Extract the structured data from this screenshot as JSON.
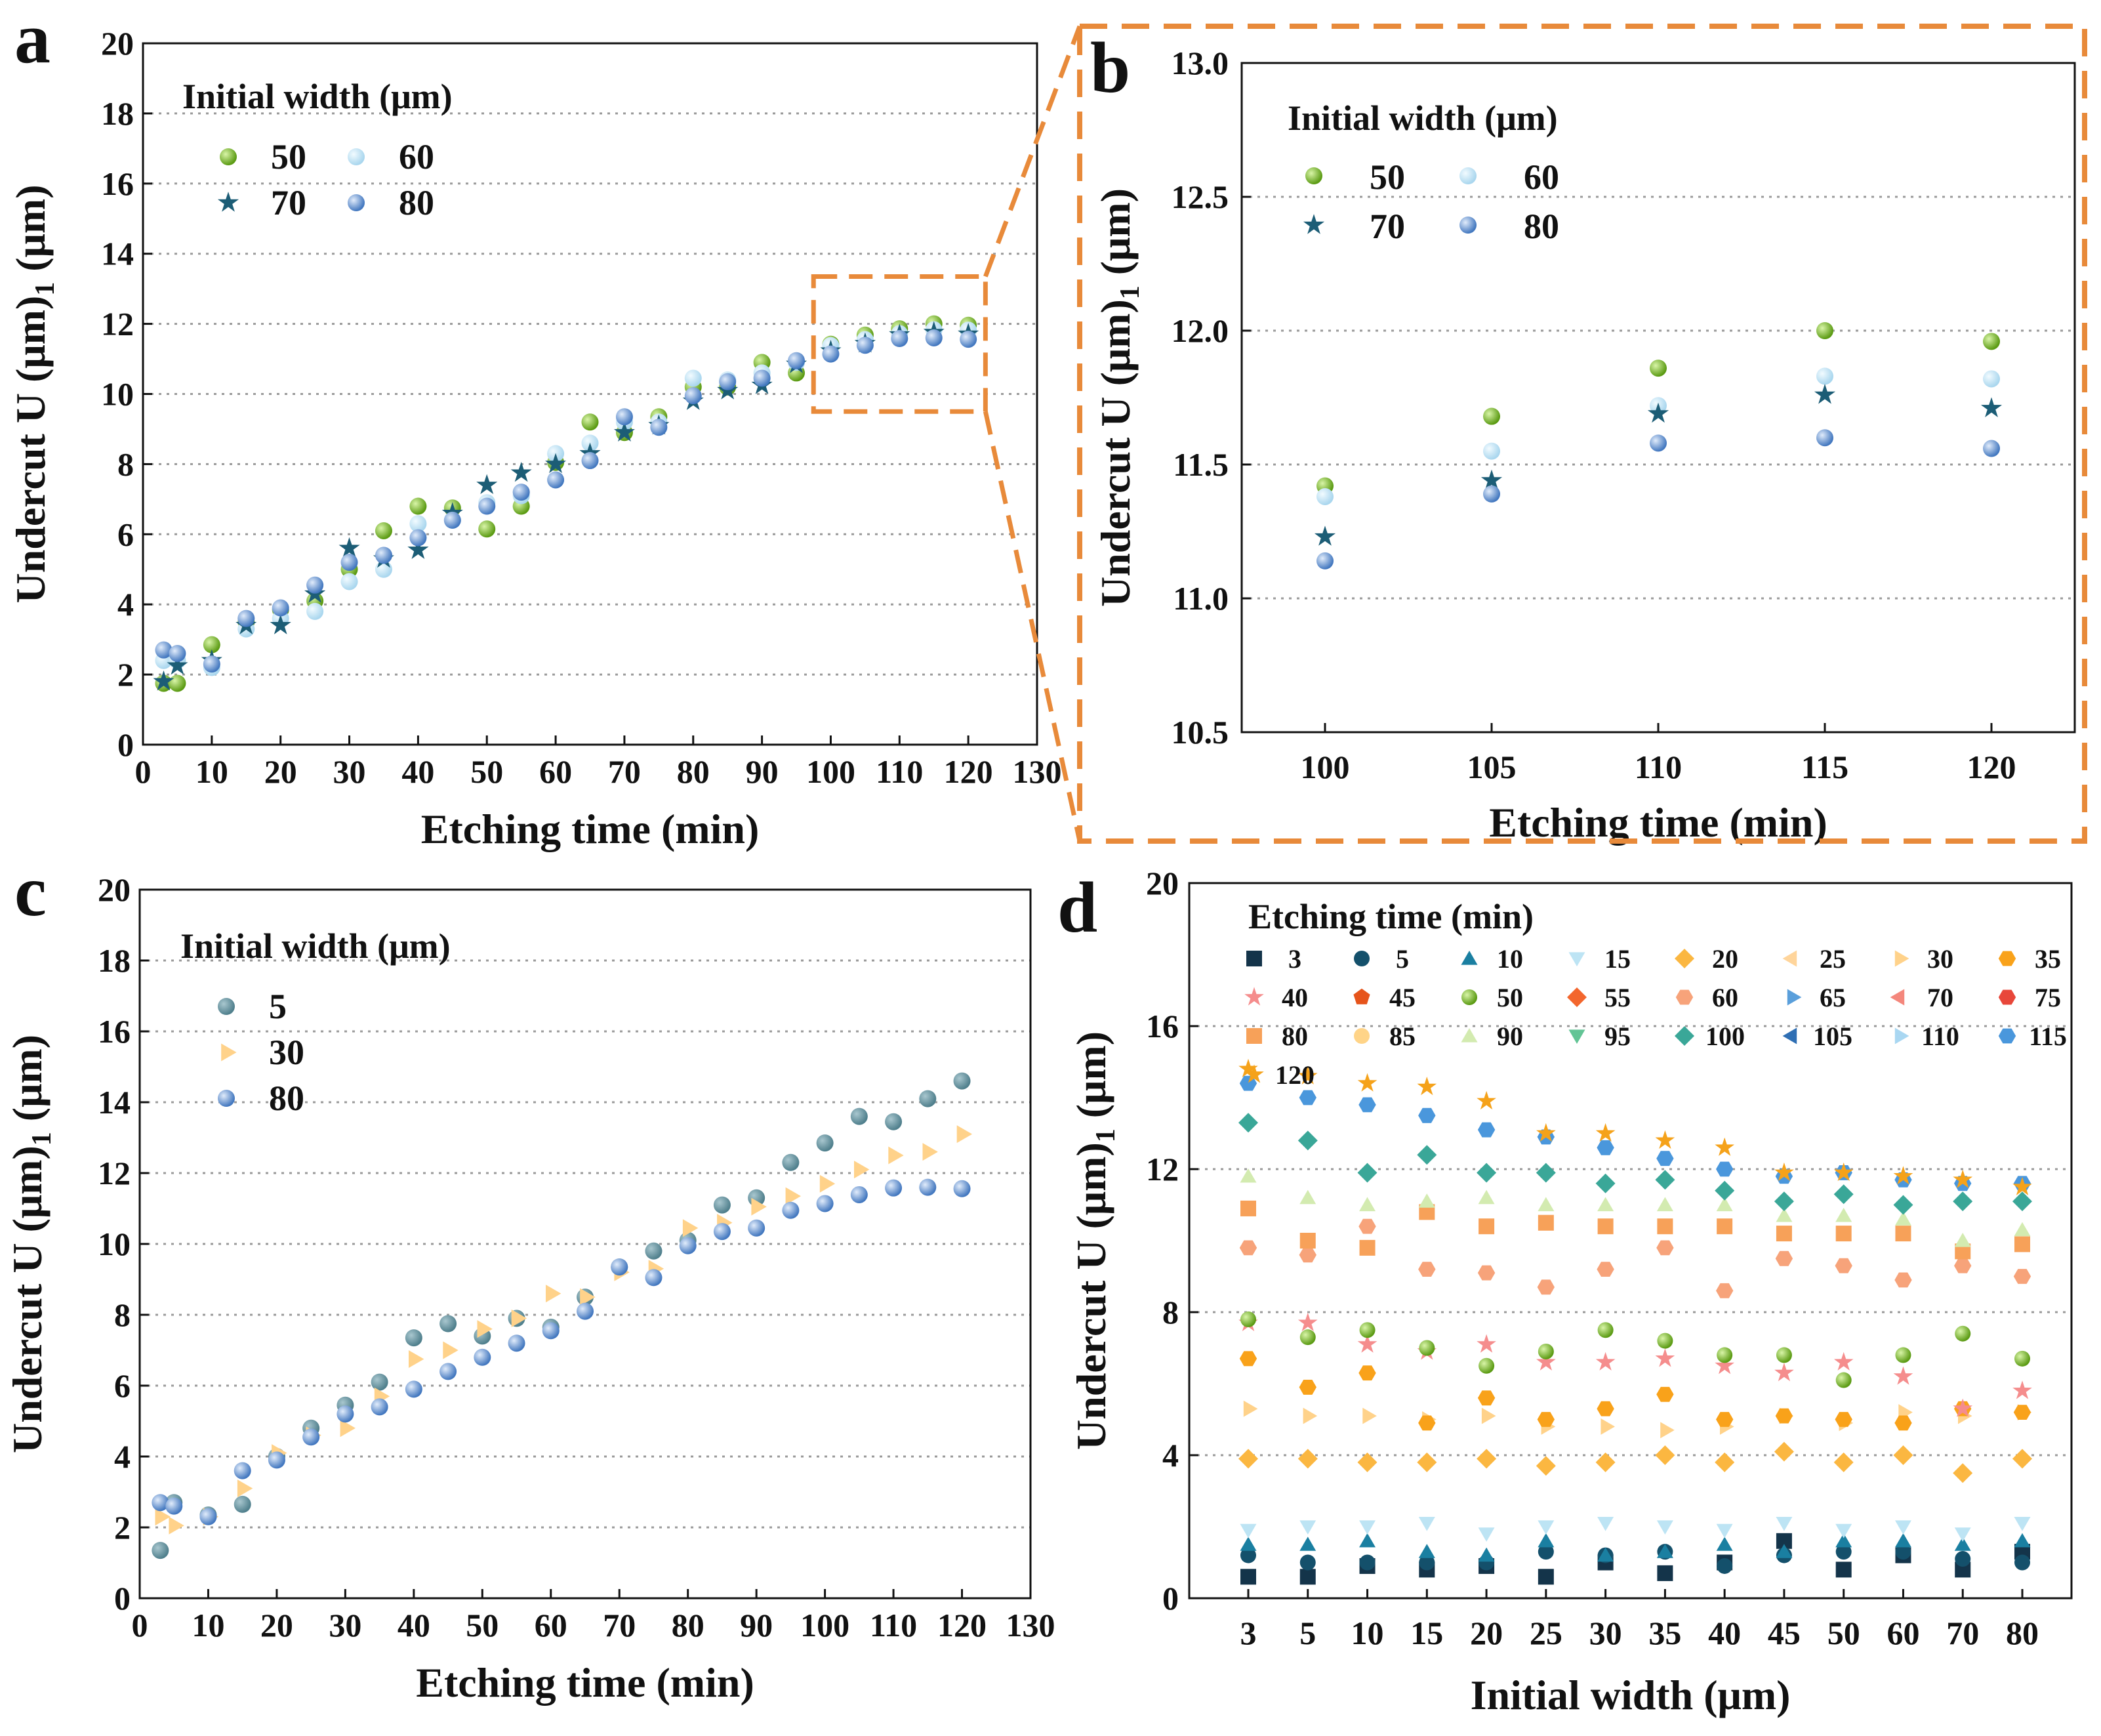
{
  "panels": {
    "a": {
      "label": "a"
    },
    "b": {
      "label": "b"
    },
    "c": {
      "label": "c"
    },
    "d": {
      "label": "d"
    }
  },
  "chart_data": [
    {
      "id": "a",
      "type": "scatter",
      "title": "",
      "xlabel": "Etching time (min)",
      "ylabel": "Undercut U1 (μm)",
      "xlim": [
        0,
        130
      ],
      "ylim": [
        0,
        20
      ],
      "xticks": [
        "0",
        "10",
        "20",
        "30",
        "40",
        "50",
        "60",
        "70",
        "80",
        "90",
        "100",
        "110",
        "120",
        "130"
      ],
      "yticks": [
        "0",
        "2",
        "4",
        "6",
        "8",
        "10",
        "12",
        "14",
        "16",
        "18",
        "20"
      ],
      "legend_title": "Initial width (μm)",
      "series": [
        {
          "name": "50",
          "color": "#6aaa1e",
          "x": [
            3,
            5,
            10,
            15,
            20,
            25,
            30,
            35,
            40,
            45,
            50,
            55,
            60,
            65,
            70,
            75,
            80,
            85,
            90,
            95,
            100,
            105,
            110,
            115,
            120
          ],
          "y": [
            1.75,
            1.75,
            2.85,
            3.5,
            3.85,
            4.1,
            5.0,
            6.1,
            6.8,
            6.75,
            6.15,
            6.8,
            8.05,
            9.2,
            8.9,
            9.35,
            10.2,
            10.2,
            10.9,
            10.6,
            11.42,
            11.68,
            11.86,
            12.0,
            11.96
          ]
        },
        {
          "name": "60",
          "color": "#bfe3f3",
          "x": [
            3,
            5,
            10,
            15,
            20,
            25,
            30,
            35,
            40,
            45,
            50,
            55,
            60,
            65,
            70,
            75,
            80,
            85,
            90,
            95,
            100,
            105,
            110,
            115,
            120
          ],
          "y": [
            2.4,
            2.4,
            2.2,
            3.3,
            3.6,
            3.8,
            4.65,
            5.0,
            6.3,
            6.4,
            6.9,
            7.1,
            8.3,
            8.6,
            9.2,
            9.2,
            10.45,
            10.4,
            10.6,
            10.9,
            11.38,
            11.55,
            11.72,
            11.83,
            11.82
          ]
        },
        {
          "name": "70",
          "color": "#1c5d76",
          "x": [
            3,
            5,
            10,
            15,
            20,
            25,
            30,
            35,
            40,
            45,
            50,
            55,
            60,
            65,
            70,
            75,
            80,
            85,
            90,
            95,
            100,
            105,
            110,
            115,
            120
          ],
          "y": [
            1.8,
            2.25,
            2.4,
            3.4,
            3.4,
            4.3,
            5.6,
            5.3,
            5.55,
            6.6,
            7.4,
            7.75,
            8.0,
            8.3,
            8.9,
            9.1,
            9.8,
            10.1,
            10.25,
            10.85,
            11.23,
            11.44,
            11.69,
            11.76,
            11.71
          ]
        },
        {
          "name": "80",
          "color": "#5b8fd0",
          "x": [
            3,
            5,
            10,
            15,
            20,
            25,
            30,
            35,
            40,
            45,
            50,
            55,
            60,
            65,
            70,
            75,
            80,
            85,
            90,
            95,
            100,
            105,
            110,
            115,
            120
          ],
          "y": [
            2.7,
            2.6,
            2.3,
            3.6,
            3.9,
            4.55,
            5.2,
            5.4,
            5.9,
            6.4,
            6.8,
            7.2,
            7.55,
            8.1,
            9.35,
            9.05,
            9.95,
            10.35,
            10.45,
            10.95,
            11.14,
            11.39,
            11.58,
            11.6,
            11.56
          ]
        }
      ]
    },
    {
      "id": "b",
      "type": "scatter",
      "title": "",
      "xlabel": "Etching time (min)",
      "ylabel": "Undercut U1 (μm)",
      "xlim": [
        97.5,
        122.5
      ],
      "ylim": [
        10.5,
        13.0
      ],
      "xticks": [
        "100",
        "105",
        "110",
        "115",
        "120"
      ],
      "yticks": [
        "10.5",
        "11.0",
        "11.5",
        "12.0",
        "12.5",
        "13.0"
      ],
      "legend_title": "Initial width (μm)",
      "series": [
        {
          "name": "50",
          "x": [
            100,
            105,
            110,
            115,
            120
          ],
          "y": [
            11.42,
            11.68,
            11.86,
            12.0,
            11.96
          ]
        },
        {
          "name": "60",
          "x": [
            100,
            105,
            110,
            115,
            120
          ],
          "y": [
            11.38,
            11.55,
            11.72,
            11.83,
            11.82
          ]
        },
        {
          "name": "70",
          "x": [
            100,
            105,
            110,
            115,
            120
          ],
          "y": [
            11.23,
            11.44,
            11.69,
            11.76,
            11.71
          ]
        },
        {
          "name": "80",
          "x": [
            100,
            105,
            110,
            115,
            120
          ],
          "y": [
            11.14,
            11.39,
            11.58,
            11.6,
            11.56
          ]
        }
      ]
    },
    {
      "id": "c",
      "type": "scatter",
      "title": "",
      "xlabel": "Etching time (min)",
      "ylabel": "Undercut U1 (μm)",
      "xlim": [
        0,
        130
      ],
      "ylim": [
        0,
        20
      ],
      "xticks": [
        "0",
        "10",
        "20",
        "30",
        "40",
        "50",
        "60",
        "70",
        "80",
        "90",
        "100",
        "110",
        "120",
        "130"
      ],
      "yticks": [
        "0",
        "2",
        "4",
        "6",
        "8",
        "10",
        "12",
        "14",
        "16",
        "18",
        "20"
      ],
      "legend_title": "Initial width (μm)",
      "series": [
        {
          "name": "5",
          "color": "#5f8a97",
          "x": [
            3,
            5,
            10,
            15,
            20,
            25,
            30,
            35,
            40,
            45,
            50,
            55,
            60,
            65,
            70,
            75,
            80,
            85,
            90,
            95,
            100,
            105,
            110,
            115,
            120
          ],
          "y": [
            1.35,
            2.7,
            2.35,
            2.65,
            4.0,
            4.8,
            5.45,
            6.1,
            7.35,
            7.75,
            7.4,
            7.9,
            7.65,
            8.5,
            9.35,
            9.8,
            10.1,
            11.1,
            11.3,
            12.3,
            12.85,
            13.6,
            13.45,
            14.1,
            14.6
          ]
        },
        {
          "name": "30",
          "color": "#ffd28a",
          "x": [
            3,
            5,
            10,
            15,
            20,
            25,
            30,
            35,
            40,
            45,
            50,
            55,
            60,
            65,
            70,
            75,
            80,
            85,
            90,
            95,
            100,
            105,
            110,
            115,
            120
          ],
          "y": [
            2.3,
            2.05,
            2.3,
            3.1,
            4.1,
            4.6,
            4.8,
            5.7,
            6.75,
            7.0,
            7.6,
            7.9,
            8.6,
            8.5,
            9.2,
            9.3,
            10.45,
            10.6,
            11.05,
            11.35,
            11.7,
            12.1,
            12.5,
            12.6,
            13.1
          ]
        },
        {
          "name": "80",
          "color": "#5b8fd0",
          "x": [
            3,
            5,
            10,
            15,
            20,
            25,
            30,
            35,
            40,
            45,
            50,
            55,
            60,
            65,
            70,
            75,
            80,
            85,
            90,
            95,
            100,
            105,
            110,
            115,
            120
          ],
          "y": [
            2.7,
            2.6,
            2.3,
            3.6,
            3.9,
            4.55,
            5.2,
            5.4,
            5.9,
            6.4,
            6.8,
            7.2,
            7.55,
            8.1,
            9.35,
            9.05,
            9.95,
            10.35,
            10.45,
            10.95,
            11.14,
            11.39,
            11.58,
            11.6,
            11.56
          ]
        }
      ]
    },
    {
      "id": "d",
      "type": "scatter",
      "title": "",
      "xlabel": "Initial width (μm)",
      "ylabel": "Undercut U1 (μm)",
      "categories": [
        "3",
        "5",
        "10",
        "15",
        "20",
        "25",
        "30",
        "35",
        "40",
        "45",
        "50",
        "60",
        "70",
        "80"
      ],
      "yticks": [
        "0",
        "4",
        "8",
        "12",
        "16",
        "20"
      ],
      "ylim": [
        0,
        20
      ],
      "legend_title": "Etching time (min)",
      "legend_items": [
        "3",
        "5",
        "10",
        "15",
        "20",
        "25",
        "30",
        "35",
        "40",
        "45",
        "50",
        "55",
        "60",
        "65",
        "70",
        "75",
        "80",
        "85",
        "90",
        "95",
        "100",
        "105",
        "110",
        "115",
        "120"
      ],
      "series": [
        {
          "name": "3",
          "values": [
            0.6,
            0.6,
            0.9,
            0.8,
            0.9,
            0.6,
            1.0,
            0.7,
            1.0,
            1.6,
            0.8,
            1.2,
            0.8,
            1.3
          ]
        },
        {
          "name": "5",
          "values": [
            1.2,
            1.0,
            1.0,
            1.0,
            1.0,
            1.3,
            1.2,
            1.3,
            0.9,
            1.2,
            1.3,
            1.3,
            1.1,
            1.0
          ]
        },
        {
          "name": "10",
          "values": [
            1.5,
            1.5,
            1.6,
            1.3,
            1.2,
            1.6,
            1.2,
            1.3,
            1.5,
            1.3,
            1.6,
            1.6,
            1.5,
            1.6
          ]
        },
        {
          "name": "15",
          "values": [
            1.9,
            2.0,
            2.0,
            2.1,
            1.8,
            2.0,
            2.1,
            2.0,
            1.9,
            2.1,
            1.9,
            2.0,
            1.8,
            2.1
          ]
        },
        {
          "name": "20",
          "values": [
            3.9,
            3.9,
            3.8,
            3.8,
            3.9,
            3.7,
            3.8,
            4.0,
            3.8,
            4.1,
            3.8,
            4.0,
            3.5,
            3.9
          ]
        },
        {
          "name": "30",
          "values": [
            5.3,
            5.1,
            5.1,
            5.0,
            5.1,
            4.8,
            4.8,
            4.7,
            4.8,
            5.1,
            4.9,
            5.2,
            5.1,
            5.2
          ]
        },
        {
          "name": "35",
          "values": [
            6.7,
            5.9,
            6.3,
            4.9,
            5.6,
            5.0,
            5.3,
            5.7,
            5.0,
            5.1,
            5.0,
            4.9,
            5.3,
            5.2
          ]
        },
        {
          "name": "40",
          "values": [
            7.7,
            7.7,
            7.1,
            6.9,
            7.1,
            6.6,
            6.6,
            6.7,
            6.5,
            6.3,
            6.6,
            6.2,
            5.3,
            5.8
          ]
        },
        {
          "name": "50",
          "values": [
            7.8,
            7.3,
            7.5,
            7.0,
            6.5,
            6.9,
            7.5,
            7.2,
            6.8,
            6.8,
            6.1,
            6.8,
            7.4,
            6.7
          ]
        },
        {
          "name": "60",
          "values": [
            9.8,
            9.6,
            10.4,
            9.2,
            9.1,
            8.7,
            9.2,
            9.8,
            8.6,
            9.5,
            9.3,
            8.9,
            9.3,
            9.0
          ]
        },
        {
          "name": "80",
          "values": [
            10.9,
            10.0,
            9.8,
            10.8,
            10.4,
            10.5,
            10.4,
            10.4,
            10.4,
            10.2,
            10.2,
            10.2,
            9.7,
            9.9
          ]
        },
        {
          "name": "90",
          "values": [
            11.8,
            11.2,
            11.0,
            11.1,
            11.2,
            11.0,
            11.0,
            11.0,
            11.0,
            10.7,
            10.7,
            10.6,
            10.0,
            10.3
          ]
        },
        {
          "name": "100",
          "values": [
            13.3,
            12.8,
            11.9,
            12.4,
            11.9,
            11.9,
            11.6,
            11.7,
            11.4,
            11.1,
            11.3,
            11.0,
            11.1,
            11.1
          ]
        },
        {
          "name": "115",
          "values": [
            14.4,
            14.0,
            13.8,
            13.5,
            13.1,
            12.9,
            12.6,
            12.3,
            12.0,
            11.8,
            11.9,
            11.7,
            11.6,
            11.6
          ]
        },
        {
          "name": "120",
          "values": [
            14.8,
            14.6,
            14.4,
            14.3,
            13.9,
            13.0,
            13.0,
            12.8,
            12.6,
            11.9,
            11.9,
            11.8,
            11.7,
            11.5
          ]
        }
      ]
    }
  ]
}
